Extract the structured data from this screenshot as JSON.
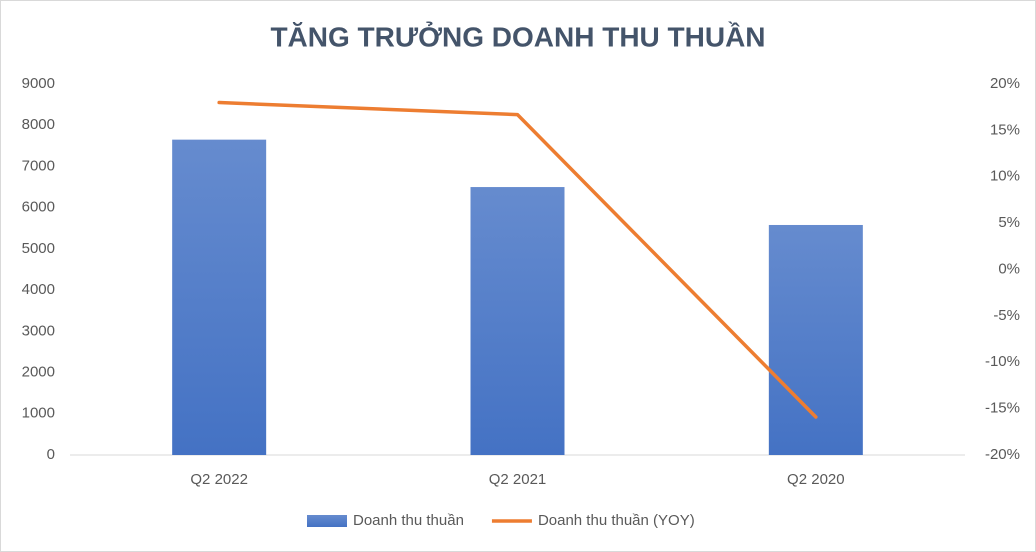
{
  "chart_data": {
    "type": "bar-line",
    "title": "TĂNG TRƯỞNG DOANH THU THUẦN",
    "categories": [
      "Q2 2022",
      "Q2 2021",
      "Q2 2020"
    ],
    "series": [
      {
        "name": "Doanh thu thuần",
        "type": "bar",
        "color": "#4472c4",
        "values": [
          7650,
          6500,
          5580
        ]
      },
      {
        "name": "Doanh thu thuần (YOY)",
        "type": "line",
        "color": "#ed7d31",
        "axis": "y2",
        "values": [
          18,
          16.7,
          -15.9
        ]
      }
    ],
    "ylim": [
      0,
      9000
    ],
    "yticks": [
      0,
      1000,
      2000,
      3000,
      4000,
      5000,
      6000,
      7000,
      8000,
      9000
    ],
    "y2lim": [
      -20,
      20
    ],
    "y2ticks": [
      {
        "value": -20,
        "label": "-20%"
      },
      {
        "value": -15,
        "label": "-15%"
      },
      {
        "value": -10,
        "label": "-10%"
      },
      {
        "value": -5,
        "label": "-5%"
      },
      {
        "value": 0,
        "label": "0%"
      },
      {
        "value": 5,
        "label": "5%"
      },
      {
        "value": 10,
        "label": "10%"
      },
      {
        "value": 15,
        "label": "15%"
      },
      {
        "value": 20,
        "label": "20%"
      }
    ],
    "grid": false,
    "legend": "bottom"
  }
}
